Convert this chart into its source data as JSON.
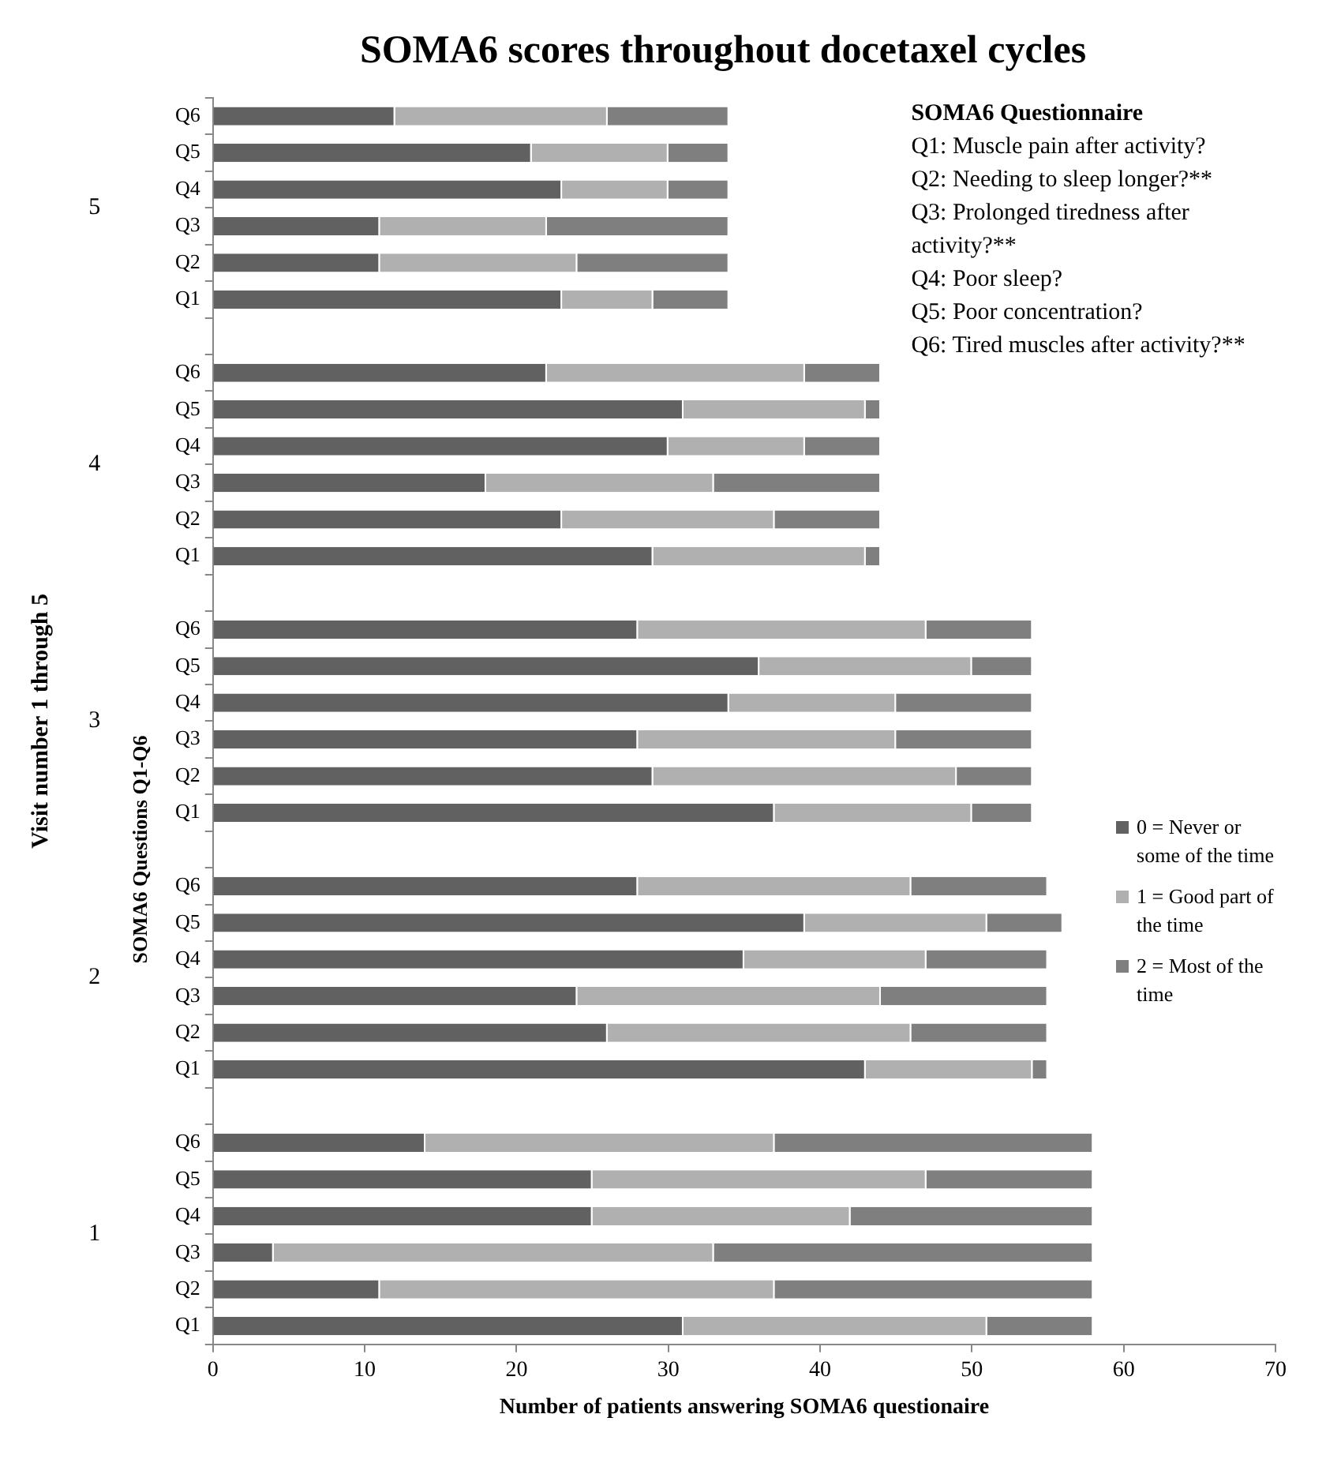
{
  "chart_data": {
    "type": "bar",
    "orientation": "horizontal",
    "stacked": true,
    "title": "SOMA6 scores throughout docetaxel cycles",
    "xlabel": "Number of patients answering SOMA6 questionaire",
    "ylabel": "SOMA6 Questions Q1-Q6",
    "categories": [
      "Q6",
      "Q5",
      "Q4",
      "Q3",
      "Q2",
      "Q1",
      null,
      "Q6",
      "Q5",
      "Q4",
      "Q3",
      "Q2",
      "Q1",
      null,
      "Q6",
      "Q5",
      "Q4",
      "Q3",
      "Q2",
      "Q1",
      null,
      "Q6",
      "Q5",
      "Q4",
      "Q3",
      "Q2",
      "Q1",
      null,
      "Q6",
      "Q5",
      "Q4",
      "Q3",
      "Q2",
      "Q1"
    ],
    "series": [
      {
        "name": "0 = Never or some of the time",
        "color": "#616161",
        "values": [
          12,
          21,
          23,
          11,
          11,
          23,
          null,
          22,
          31,
          30,
          18,
          23,
          29,
          null,
          28,
          36,
          34,
          28,
          29,
          37,
          null,
          28,
          39,
          35,
          24,
          26,
          43,
          null,
          14,
          25,
          25,
          4,
          11,
          31
        ]
      },
      {
        "name": "1 = Good part of the time",
        "color": "#b0b0b0",
        "values": [
          14,
          9,
          7,
          11,
          13,
          6,
          null,
          17,
          12,
          9,
          15,
          14,
          14,
          null,
          19,
          14,
          11,
          17,
          20,
          13,
          null,
          18,
          12,
          12,
          20,
          20,
          11,
          null,
          23,
          22,
          17,
          29,
          26,
          20
        ]
      },
      {
        "name": "2 = Most of the time",
        "color": "#7f7f7f",
        "values": [
          8,
          4,
          4,
          12,
          10,
          5,
          null,
          5,
          1,
          5,
          11,
          7,
          1,
          null,
          7,
          4,
          9,
          9,
          5,
          4,
          null,
          9,
          5,
          8,
          11,
          9,
          1,
          null,
          21,
          11,
          16,
          25,
          21,
          7
        ]
      }
    ],
    "xlim": [
      0,
      70
    ],
    "xticks": [
      0,
      10,
      20,
      30,
      40,
      50,
      60,
      70
    ],
    "grid": false,
    "legend": "right",
    "annotations": [
      "Visit number 1 through 5",
      "5",
      "4",
      "3",
      "2",
      "1",
      "SOMA6 Questionnaire",
      "Q1: Muscle pain after activity?",
      "Q2: Needing to sleep longer?**",
      "Q3: Prolonged tiredness after activity?**",
      "Q4: Poor sleep?",
      "Q5: Poor concentration?",
      "Q6: Tired muscles after activity?**"
    ]
  }
}
